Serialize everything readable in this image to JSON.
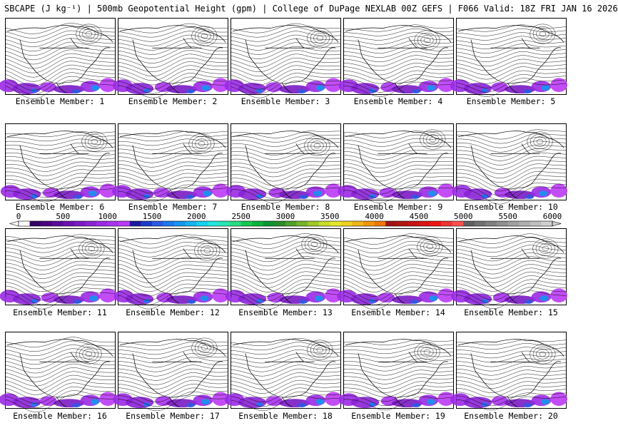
{
  "header": {
    "title": "SBCAPE (J kg⁻¹) | 500mb Geopotential Height (gpm) | College of DuPage NEXLAB 00Z GEFS | F066 Valid: 18Z FRI JAN 16 2026"
  },
  "panels": [
    {
      "caption": "Ensemble Member: 1"
    },
    {
      "caption": "Ensemble Member: 2"
    },
    {
      "caption": "Ensemble Member: 3"
    },
    {
      "caption": "Ensemble Member: 4"
    },
    {
      "caption": "Ensemble Member: 5"
    },
    {
      "caption": "Ensemble Member: 6"
    },
    {
      "caption": "Ensemble Member: 7"
    },
    {
      "caption": "Ensemble Member: 8"
    },
    {
      "caption": "Ensemble Member: 9"
    },
    {
      "caption": "Ensemble Member: 10"
    },
    {
      "caption": "Ensemble Member: 11"
    },
    {
      "caption": "Ensemble Member: 12"
    },
    {
      "caption": "Ensemble Member: 13"
    },
    {
      "caption": "Ensemble Member: 14"
    },
    {
      "caption": "Ensemble Member: 15"
    },
    {
      "caption": "Ensemble Member: 16"
    },
    {
      "caption": "Ensemble Member: 17"
    },
    {
      "caption": "Ensemble Member: 18"
    },
    {
      "caption": "Ensemble Member: 19"
    },
    {
      "caption": "Ensemble Member: 20"
    }
  ],
  "colorbar": {
    "tick_labels": [
      "0",
      "500",
      "1000",
      "1500",
      "2000",
      "2500",
      "3000",
      "3500",
      "4000",
      "4500",
      "5000",
      "5500",
      "6000"
    ],
    "colors": [
      "#ffffff",
      "#330066",
      "#4b0082",
      "#5a0a9a",
      "#6b10b0",
      "#7a1ac4",
      "#8a22d6",
      "#9a2ae6",
      "#aa32f0",
      "#bb3af6",
      "#1a1aa0",
      "#1e3cc8",
      "#2a5ae6",
      "#1e78f0",
      "#1496f0",
      "#14b4f0",
      "#14d2f0",
      "#20e6e0",
      "#28e6b4",
      "#28dc82",
      "#14c850",
      "#0ab43c",
      "#0a9632",
      "#2a8c28",
      "#50a028",
      "#78b428",
      "#a0c828",
      "#c8dc28",
      "#e6e628",
      "#f0d21e",
      "#f0b414",
      "#f0960a",
      "#f07800",
      "#a01414",
      "#b41414",
      "#c81414",
      "#dc1414",
      "#f01414",
      "#f03232",
      "#ff5050",
      "#606060",
      "#707070",
      "#808080",
      "#909090",
      "#a0a0a0",
      "#b0b0b0",
      "#c0c0c0",
      "#d0d0d0"
    ],
    "contour_color": "#000000"
  }
}
